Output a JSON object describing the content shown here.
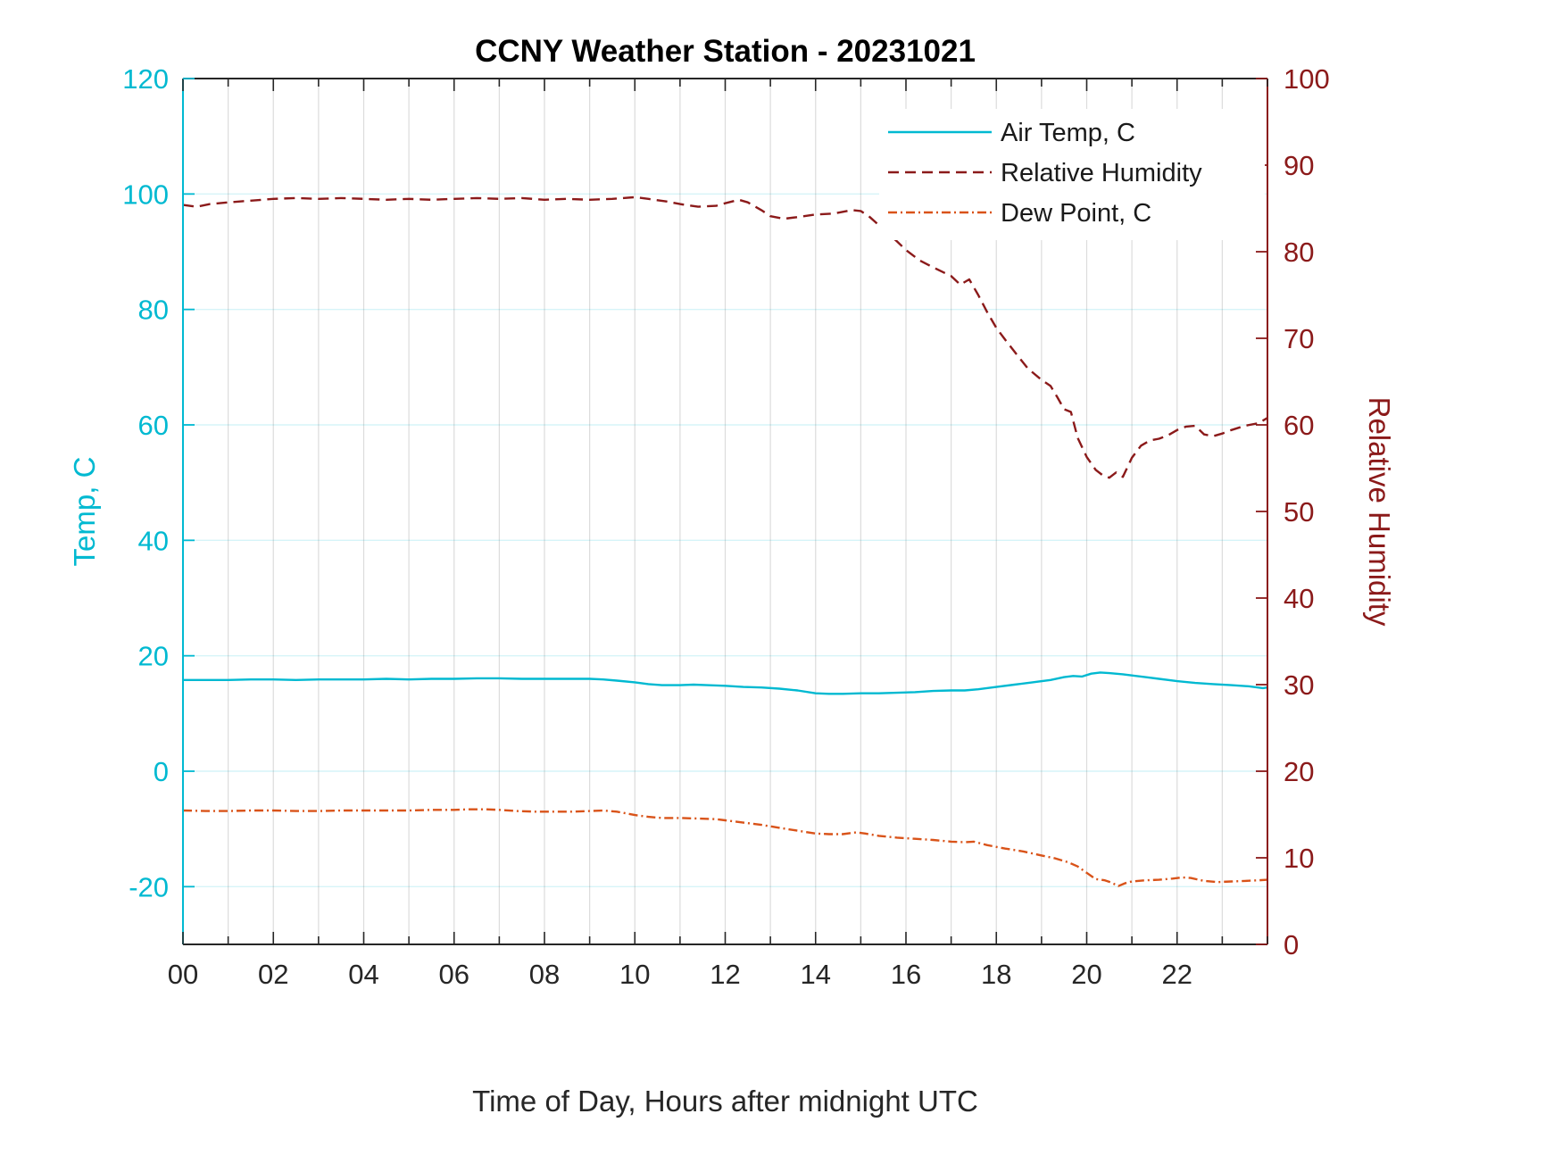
{
  "chart_data": {
    "type": "line",
    "title": "CCNY Weather Station - 20231021",
    "xlabel": "Time of Day, Hours after midnight UTC",
    "ylabel_left": "Temp, C",
    "ylabel_right": "Relative Humidity",
    "x_range": [
      0,
      24
    ],
    "x_tick_values": [
      0,
      2,
      4,
      6,
      8,
      10,
      12,
      14,
      16,
      18,
      20,
      22
    ],
    "x_tick_labels": [
      "00",
      "02",
      "04",
      "06",
      "08",
      "10",
      "12",
      "14",
      "16",
      "18",
      "20",
      "22"
    ],
    "x_minor_step": 1,
    "grid": true,
    "left_axis": {
      "range": [
        -30,
        120
      ],
      "ticks": [
        -20,
        0,
        20,
        40,
        60,
        80,
        100,
        120
      ],
      "color": "#00b9d1"
    },
    "right_axis": {
      "range": [
        0,
        100
      ],
      "ticks": [
        0,
        10,
        20,
        30,
        40,
        50,
        60,
        70,
        80,
        90,
        100
      ],
      "color": "#8b1a1a"
    },
    "x_axis_color": "#262626",
    "grid_colors": {
      "horizontal": "rgba(0,185,209,0.16)",
      "vertical": "rgba(60,60,60,0.18)"
    },
    "legend": {
      "position": "northeast",
      "entries": [
        "Air Temp, C",
        "Relative Humidity",
        "Dew Point, C"
      ]
    },
    "series": [
      {
        "id": "air-temp",
        "name": "Air Temp, C",
        "axis": "left",
        "color": "#00b9d1",
        "style": "solid",
        "points": [
          [
            0,
            15.8
          ],
          [
            0.5,
            15.8
          ],
          [
            1,
            15.8
          ],
          [
            1.5,
            15.9
          ],
          [
            2,
            15.9
          ],
          [
            2.5,
            15.8
          ],
          [
            3,
            15.9
          ],
          [
            3.5,
            15.9
          ],
          [
            4,
            15.9
          ],
          [
            4.5,
            16.0
          ],
          [
            5,
            15.9
          ],
          [
            5.5,
            16.0
          ],
          [
            6,
            16.0
          ],
          [
            6.5,
            16.1
          ],
          [
            7,
            16.1
          ],
          [
            7.5,
            16.0
          ],
          [
            8,
            16.0
          ],
          [
            8.5,
            16.0
          ],
          [
            9,
            16.0
          ],
          [
            9.3,
            15.9
          ],
          [
            9.6,
            15.7
          ],
          [
            10,
            15.4
          ],
          [
            10.3,
            15.1
          ],
          [
            10.6,
            14.9
          ],
          [
            11,
            14.9
          ],
          [
            11.3,
            15.0
          ],
          [
            11.6,
            14.9
          ],
          [
            12,
            14.8
          ],
          [
            12.4,
            14.6
          ],
          [
            12.8,
            14.5
          ],
          [
            13.2,
            14.3
          ],
          [
            13.6,
            14.0
          ],
          [
            14,
            13.5
          ],
          [
            14.3,
            13.4
          ],
          [
            14.6,
            13.4
          ],
          [
            15,
            13.5
          ],
          [
            15.4,
            13.5
          ],
          [
            15.8,
            13.6
          ],
          [
            16.2,
            13.7
          ],
          [
            16.6,
            13.9
          ],
          [
            17,
            14.0
          ],
          [
            17.3,
            14.0
          ],
          [
            17.6,
            14.2
          ],
          [
            18,
            14.6
          ],
          [
            18.4,
            15.0
          ],
          [
            18.8,
            15.4
          ],
          [
            19.2,
            15.8
          ],
          [
            19.5,
            16.3
          ],
          [
            19.7,
            16.5
          ],
          [
            19.9,
            16.4
          ],
          [
            20.1,
            16.9
          ],
          [
            20.3,
            17.1
          ],
          [
            20.5,
            17.0
          ],
          [
            20.8,
            16.8
          ],
          [
            21,
            16.6
          ],
          [
            21.3,
            16.3
          ],
          [
            21.6,
            16.0
          ],
          [
            22,
            15.6
          ],
          [
            22.4,
            15.3
          ],
          [
            22.8,
            15.1
          ],
          [
            23.2,
            14.9
          ],
          [
            23.6,
            14.7
          ],
          [
            23.9,
            14.4
          ],
          [
            24,
            14.5
          ]
        ]
      },
      {
        "id": "relative-humidity",
        "name": "Relative Humidity",
        "axis": "right",
        "color": "#8b1a1a",
        "style": "dashed",
        "points": [
          [
            0,
            85.4
          ],
          [
            0.3,
            85.2
          ],
          [
            0.6,
            85.5
          ],
          [
            1,
            85.7
          ],
          [
            1.5,
            85.9
          ],
          [
            2,
            86.1
          ],
          [
            2.5,
            86.2
          ],
          [
            3,
            86.1
          ],
          [
            3.5,
            86.2
          ],
          [
            4,
            86.1
          ],
          [
            4.5,
            86.0
          ],
          [
            5,
            86.1
          ],
          [
            5.5,
            86.0
          ],
          [
            6,
            86.1
          ],
          [
            6.5,
            86.2
          ],
          [
            7,
            86.1
          ],
          [
            7.5,
            86.2
          ],
          [
            8,
            86.0
          ],
          [
            8.5,
            86.1
          ],
          [
            9,
            86.0
          ],
          [
            9.5,
            86.1
          ],
          [
            10,
            86.3
          ],
          [
            10.3,
            86.1
          ],
          [
            10.7,
            85.8
          ],
          [
            11,
            85.5
          ],
          [
            11.4,
            85.2
          ],
          [
            11.8,
            85.3
          ],
          [
            12,
            85.6
          ],
          [
            12.3,
            86.0
          ],
          [
            12.5,
            85.7
          ],
          [
            12.8,
            84.8
          ],
          [
            13,
            84.1
          ],
          [
            13.3,
            83.8
          ],
          [
            13.6,
            84.0
          ],
          [
            14,
            84.3
          ],
          [
            14.4,
            84.4
          ],
          [
            14.8,
            84.8
          ],
          [
            15,
            84.7
          ],
          [
            15.2,
            84.0
          ],
          [
            15.5,
            82.6
          ],
          [
            15.8,
            81.2
          ],
          [
            16,
            80.2
          ],
          [
            16.3,
            79.0
          ],
          [
            16.6,
            78.2
          ],
          [
            17,
            77.2
          ],
          [
            17.2,
            76.2
          ],
          [
            17.4,
            76.8
          ],
          [
            17.6,
            75.0
          ],
          [
            17.8,
            73.0
          ],
          [
            18,
            71.2
          ],
          [
            18.2,
            69.8
          ],
          [
            18.5,
            67.8
          ],
          [
            18.7,
            66.5
          ],
          [
            19,
            65.2
          ],
          [
            19.2,
            64.5
          ],
          [
            19.35,
            63.2
          ],
          [
            19.5,
            61.8
          ],
          [
            19.65,
            61.5
          ],
          [
            19.8,
            58.5
          ],
          [
            20,
            56.3
          ],
          [
            20.2,
            54.8
          ],
          [
            20.35,
            54.2
          ],
          [
            20.5,
            53.9
          ],
          [
            20.65,
            54.5
          ],
          [
            20.8,
            54.0
          ],
          [
            21,
            56.2
          ],
          [
            21.2,
            57.6
          ],
          [
            21.4,
            58.2
          ],
          [
            21.6,
            58.4
          ],
          [
            21.8,
            58.8
          ],
          [
            22,
            59.4
          ],
          [
            22.2,
            59.8
          ],
          [
            22.4,
            59.9
          ],
          [
            22.6,
            58.9
          ],
          [
            22.8,
            58.7
          ],
          [
            23,
            59.0
          ],
          [
            23.2,
            59.4
          ],
          [
            23.5,
            59.9
          ],
          [
            23.8,
            60.2
          ],
          [
            24,
            60.8
          ]
        ]
      },
      {
        "id": "dew-point",
        "name": "Dew Point, C",
        "axis": "left",
        "color": "#d95319",
        "style": "dashdot",
        "points": [
          [
            0,
            -6.8
          ],
          [
            0.5,
            -6.9
          ],
          [
            1,
            -6.9
          ],
          [
            1.5,
            -6.8
          ],
          [
            2,
            -6.8
          ],
          [
            2.5,
            -6.9
          ],
          [
            3,
            -6.9
          ],
          [
            3.5,
            -6.8
          ],
          [
            4,
            -6.8
          ],
          [
            4.5,
            -6.8
          ],
          [
            5,
            -6.8
          ],
          [
            5.5,
            -6.7
          ],
          [
            6,
            -6.7
          ],
          [
            6.3,
            -6.6
          ],
          [
            6.7,
            -6.6
          ],
          [
            7,
            -6.7
          ],
          [
            7.4,
            -6.9
          ],
          [
            7.8,
            -7.0
          ],
          [
            8.2,
            -7.0
          ],
          [
            8.6,
            -7.0
          ],
          [
            9,
            -6.9
          ],
          [
            9.3,
            -6.8
          ],
          [
            9.6,
            -7.0
          ],
          [
            10,
            -7.6
          ],
          [
            10.3,
            -7.9
          ],
          [
            10.6,
            -8.1
          ],
          [
            11,
            -8.1
          ],
          [
            11.4,
            -8.2
          ],
          [
            11.8,
            -8.3
          ],
          [
            12,
            -8.5
          ],
          [
            12.4,
            -8.9
          ],
          [
            12.8,
            -9.3
          ],
          [
            13.2,
            -9.8
          ],
          [
            13.6,
            -10.3
          ],
          [
            14,
            -10.8
          ],
          [
            14.3,
            -10.9
          ],
          [
            14.6,
            -10.9
          ],
          [
            14.9,
            -10.6
          ],
          [
            15.1,
            -10.8
          ],
          [
            15.4,
            -11.2
          ],
          [
            15.8,
            -11.5
          ],
          [
            16.2,
            -11.7
          ],
          [
            16.6,
            -11.9
          ],
          [
            17,
            -12.2
          ],
          [
            17.3,
            -12.3
          ],
          [
            17.5,
            -12.2
          ],
          [
            17.8,
            -12.8
          ],
          [
            18.2,
            -13.4
          ],
          [
            18.6,
            -13.9
          ],
          [
            19,
            -14.6
          ],
          [
            19.3,
            -15.1
          ],
          [
            19.6,
            -15.8
          ],
          [
            19.8,
            -16.5
          ],
          [
            20,
            -17.6
          ],
          [
            20.2,
            -18.7
          ],
          [
            20.4,
            -18.9
          ],
          [
            20.55,
            -19.3
          ],
          [
            20.7,
            -19.9
          ],
          [
            20.85,
            -19.4
          ],
          [
            21,
            -19.1
          ],
          [
            21.3,
            -18.9
          ],
          [
            21.6,
            -18.8
          ],
          [
            21.9,
            -18.6
          ],
          [
            22.1,
            -18.4
          ],
          [
            22.3,
            -18.5
          ],
          [
            22.6,
            -19.0
          ],
          [
            22.9,
            -19.2
          ],
          [
            23.2,
            -19.1
          ],
          [
            23.5,
            -19.0
          ],
          [
            23.8,
            -18.9
          ],
          [
            24,
            -18.8
          ]
        ]
      }
    ]
  }
}
